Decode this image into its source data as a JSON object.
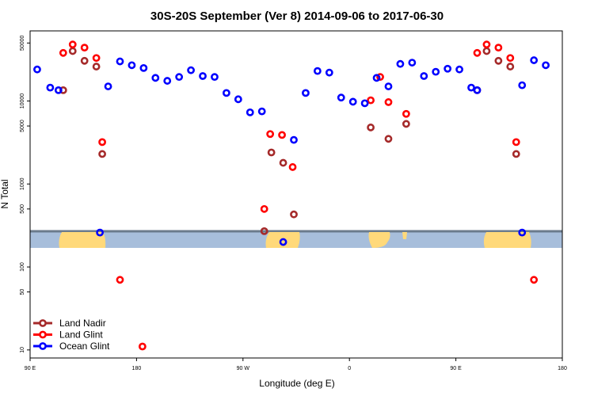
{
  "chart_data": {
    "type": "scatter",
    "title": "30S-20S September (Ver 8)   2014-09-06 to 2017-06-30",
    "xlabel": "Longitude (deg E)",
    "ylabel": "N Total",
    "xlim": [
      90,
      540
    ],
    "ylim": [
      8,
      70000
    ],
    "yscale": "log",
    "x_ticks": [
      {
        "value": 90,
        "label": "90 E"
      },
      {
        "value": 180,
        "label": "180"
      },
      {
        "value": 270,
        "label": "90 W"
      },
      {
        "value": 360,
        "label": "0"
      },
      {
        "value": 450,
        "label": "90 E"
      },
      {
        "value": 540,
        "label": "180"
      }
    ],
    "y_ticks": [
      {
        "value": 10,
        "label": "10"
      },
      {
        "value": 50,
        "label": "50"
      },
      {
        "value": 100,
        "label": "100"
      },
      {
        "value": 500,
        "label": "500"
      },
      {
        "value": 1000,
        "label": "1000"
      },
      {
        "value": 5000,
        "label": "5000"
      },
      {
        "value": 10000,
        "label": "10000"
      },
      {
        "value": 50000,
        "label": "50000"
      }
    ],
    "legend_position": "bottom-left",
    "series": [
      {
        "name": "Land Nadir",
        "color": "#a52a2a",
        "points": [
          {
            "x": 118,
            "y": 13500
          },
          {
            "x": 126,
            "y": 40000
          },
          {
            "x": 136,
            "y": 30500
          },
          {
            "x": 146,
            "y": 26000
          },
          {
            "x": 151,
            "y": 2300
          },
          {
            "x": 288,
            "y": 270
          },
          {
            "x": 294,
            "y": 2400
          },
          {
            "x": 304,
            "y": 1800
          },
          {
            "x": 313,
            "y": 430
          },
          {
            "x": 378,
            "y": 4800
          },
          {
            "x": 393,
            "y": 3500
          },
          {
            "x": 408,
            "y": 5300
          },
          {
            "x": 468,
            "y": 13500
          },
          {
            "x": 476,
            "y": 40000
          },
          {
            "x": 486,
            "y": 30500
          },
          {
            "x": 496,
            "y": 26000
          },
          {
            "x": 501,
            "y": 2300
          }
        ]
      },
      {
        "name": "Land Glint",
        "color": "#ff0000",
        "points": [
          {
            "x": 118,
            "y": 38000
          },
          {
            "x": 126,
            "y": 48000
          },
          {
            "x": 136,
            "y": 44000
          },
          {
            "x": 146,
            "y": 33000
          },
          {
            "x": 151,
            "y": 3200
          },
          {
            "x": 166,
            "y": 70
          },
          {
            "x": 185,
            "y": 11
          },
          {
            "x": 288,
            "y": 500
          },
          {
            "x": 293,
            "y": 4000
          },
          {
            "x": 303,
            "y": 3900
          },
          {
            "x": 312,
            "y": 1600
          },
          {
            "x": 378,
            "y": 10200
          },
          {
            "x": 386,
            "y": 19500
          },
          {
            "x": 393,
            "y": 9700
          },
          {
            "x": 408,
            "y": 7000
          },
          {
            "x": 468,
            "y": 38000
          },
          {
            "x": 476,
            "y": 48000
          },
          {
            "x": 486,
            "y": 44000
          },
          {
            "x": 496,
            "y": 33000
          },
          {
            "x": 501,
            "y": 3200
          },
          {
            "x": 516,
            "y": 70
          }
        ]
      },
      {
        "name": "Ocean Glint",
        "color": "#0000ff",
        "points": [
          {
            "x": 96,
            "y": 24000
          },
          {
            "x": 107,
            "y": 14500
          },
          {
            "x": 114,
            "y": 13500
          },
          {
            "x": 149,
            "y": 260
          },
          {
            "x": 156,
            "y": 15000
          },
          {
            "x": 166,
            "y": 30000
          },
          {
            "x": 176,
            "y": 27000
          },
          {
            "x": 186,
            "y": 25000
          },
          {
            "x": 196,
            "y": 19000
          },
          {
            "x": 206,
            "y": 17500
          },
          {
            "x": 216,
            "y": 19500
          },
          {
            "x": 226,
            "y": 23500
          },
          {
            "x": 236,
            "y": 20000
          },
          {
            "x": 246,
            "y": 19500
          },
          {
            "x": 256,
            "y": 12500
          },
          {
            "x": 266,
            "y": 10500
          },
          {
            "x": 276,
            "y": 7300
          },
          {
            "x": 286,
            "y": 7500
          },
          {
            "x": 304,
            "y": 200
          },
          {
            "x": 313,
            "y": 3400
          },
          {
            "x": 323,
            "y": 12500
          },
          {
            "x": 333,
            "y": 23000
          },
          {
            "x": 343,
            "y": 22000
          },
          {
            "x": 353,
            "y": 11000
          },
          {
            "x": 363,
            "y": 9800
          },
          {
            "x": 373,
            "y": 9400
          },
          {
            "x": 383,
            "y": 19000
          },
          {
            "x": 393,
            "y": 15000
          },
          {
            "x": 403,
            "y": 28000
          },
          {
            "x": 413,
            "y": 29000
          },
          {
            "x": 423,
            "y": 20000
          },
          {
            "x": 433,
            "y": 22500
          },
          {
            "x": 443,
            "y": 24500
          },
          {
            "x": 453,
            "y": 24000
          },
          {
            "x": 463,
            "y": 14500
          },
          {
            "x": 468,
            "y": 13500
          },
          {
            "x": 506,
            "y": 15500
          },
          {
            "x": 506,
            "y": 260
          },
          {
            "x": 516,
            "y": 31000
          },
          {
            "x": 526,
            "y": 27000
          }
        ]
      }
    ]
  },
  "map_strip": {
    "ocean_color": "#a7bedb",
    "land_color": "#ffd97a",
    "border_color": "#6b7b8c"
  }
}
